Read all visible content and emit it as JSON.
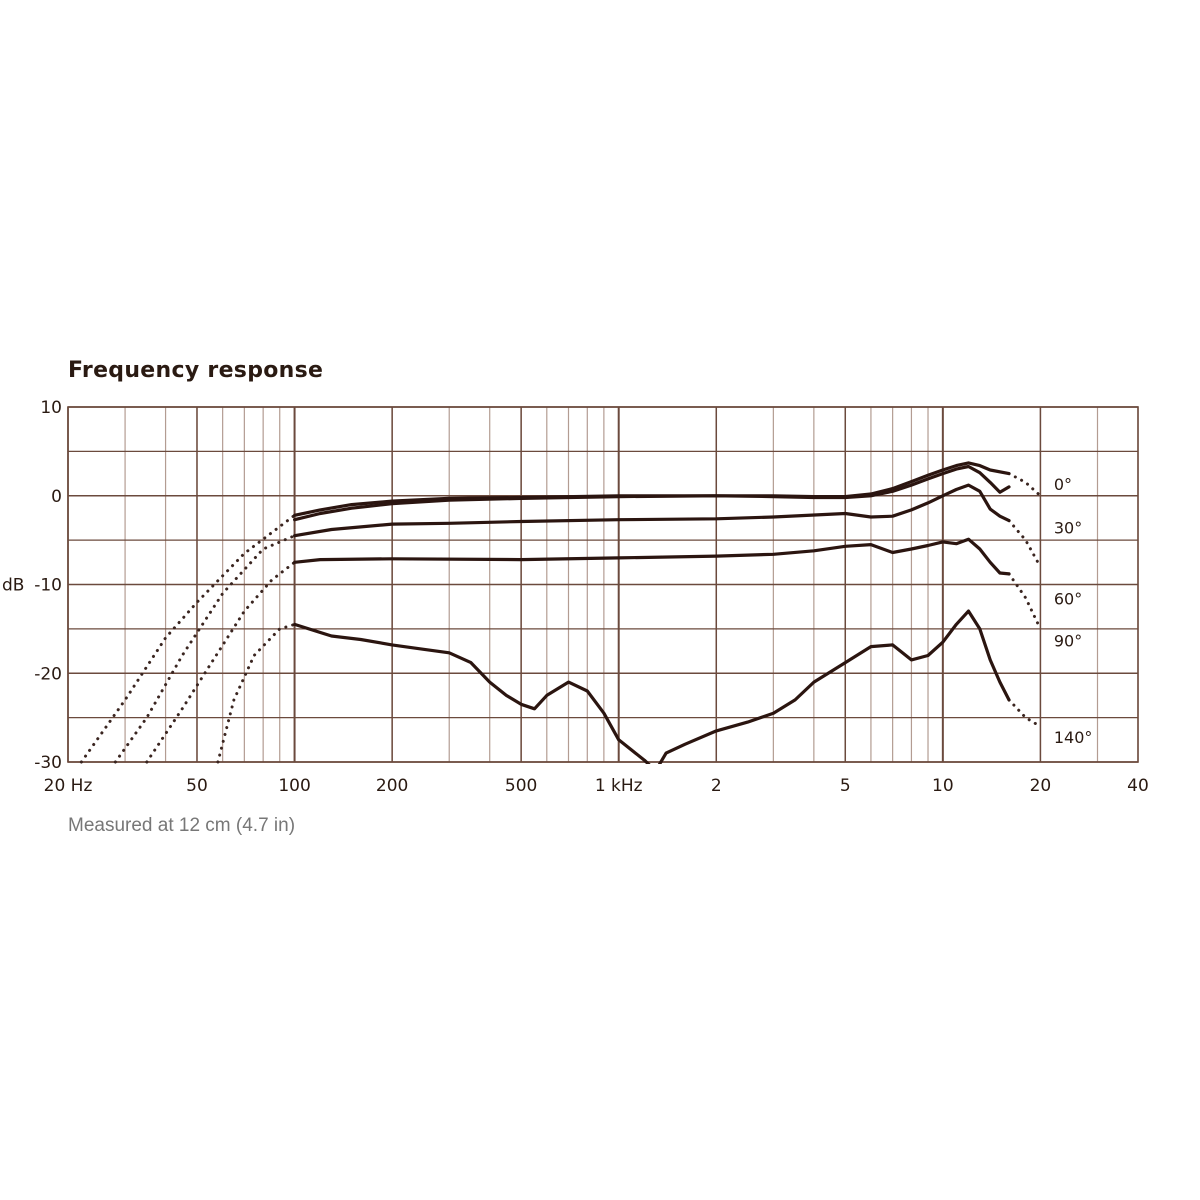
{
  "title": "Frequency response",
  "note": "Measured at 12 cm (4.7 in)",
  "chart_data": {
    "type": "line",
    "title": "Frequency response",
    "ylabel": "dB",
    "xscale": "log",
    "xlim": [
      20,
      40000
    ],
    "ylim": [
      -30,
      10
    ],
    "grid": true,
    "x_ticks": [
      {
        "v": 20,
        "label": "20 Hz"
      },
      {
        "v": 50,
        "label": "50"
      },
      {
        "v": 100,
        "label": "100"
      },
      {
        "v": 200,
        "label": "200"
      },
      {
        "v": 500,
        "label": "500"
      },
      {
        "v": 1000,
        "label": "1 kHz"
      },
      {
        "v": 2000,
        "label": "2"
      },
      {
        "v": 5000,
        "label": "5"
      },
      {
        "v": 10000,
        "label": "10"
      },
      {
        "v": 20000,
        "label": "20"
      },
      {
        "v": 40000,
        "label": "40"
      }
    ],
    "y_ticks": [
      {
        "v": 10,
        "label": "10"
      },
      {
        "v": 0,
        "label": "0"
      },
      {
        "v": -10,
        "label": "-10"
      },
      {
        "v": -20,
        "label": "-20"
      },
      {
        "v": -30,
        "label": "-30"
      }
    ],
    "series": [
      {
        "name": "0°",
        "rolloff_low": [
          [
            22,
            -30
          ],
          [
            30,
            -23
          ],
          [
            40,
            -16
          ],
          [
            50,
            -12
          ],
          [
            70,
            -6.5
          ],
          [
            100,
            -2.2
          ]
        ],
        "rolloff_high": [
          [
            16000,
            2.5
          ],
          [
            18000,
            1.5
          ],
          [
            20000,
            0
          ]
        ],
        "values": [
          [
            100,
            -2.2
          ],
          [
            120,
            -1.6
          ],
          [
            150,
            -1
          ],
          [
            200,
            -0.6
          ],
          [
            300,
            -0.3
          ],
          [
            500,
            -0.2
          ],
          [
            1000,
            0
          ],
          [
            2000,
            0
          ],
          [
            3000,
            0
          ],
          [
            4000,
            -0.1
          ],
          [
            5000,
            -0.1
          ],
          [
            6000,
            0.2
          ],
          [
            7000,
            0.8
          ],
          [
            8000,
            1.6
          ],
          [
            9000,
            2.3
          ],
          [
            10000,
            2.9
          ],
          [
            11000,
            3.4
          ],
          [
            12000,
            3.7
          ],
          [
            13000,
            3.4
          ],
          [
            14000,
            2.9
          ],
          [
            16000,
            2.5
          ]
        ]
      },
      {
        "name": "0°",
        "values": [
          [
            100,
            -2.7
          ],
          [
            120,
            -2
          ],
          [
            150,
            -1.4
          ],
          [
            200,
            -0.9
          ],
          [
            300,
            -0.5
          ],
          [
            500,
            -0.3
          ],
          [
            1000,
            -0.1
          ],
          [
            2000,
            0
          ],
          [
            3000,
            -0.1
          ],
          [
            4000,
            -0.2
          ],
          [
            5000,
            -0.2
          ],
          [
            6000,
            0
          ],
          [
            7000,
            0.5
          ],
          [
            8000,
            1.2
          ],
          [
            9000,
            1.9
          ],
          [
            10000,
            2.5
          ],
          [
            11000,
            3
          ],
          [
            12000,
            3.3
          ],
          [
            13000,
            2.6
          ],
          [
            14000,
            1.5
          ],
          [
            15000,
            0.4
          ],
          [
            16000,
            1
          ]
        ]
      },
      {
        "name": "30°",
        "rolloff_low": [
          [
            28,
            -30
          ],
          [
            35,
            -25
          ],
          [
            45,
            -18
          ],
          [
            60,
            -11
          ],
          [
            80,
            -6
          ],
          [
            100,
            -4.5
          ]
        ],
        "rolloff_high": [
          [
            16000,
            -2.8
          ],
          [
            18000,
            -5
          ],
          [
            20000,
            -8
          ]
        ],
        "values": [
          [
            100,
            -4.5
          ],
          [
            130,
            -3.8
          ],
          [
            200,
            -3.2
          ],
          [
            300,
            -3.1
          ],
          [
            500,
            -2.9
          ],
          [
            1000,
            -2.7
          ],
          [
            2000,
            -2.6
          ],
          [
            3000,
            -2.4
          ],
          [
            5000,
            -2
          ],
          [
            6000,
            -2.4
          ],
          [
            7000,
            -2.3
          ],
          [
            8000,
            -1.6
          ],
          [
            9000,
            -0.8
          ],
          [
            10000,
            0
          ],
          [
            11000,
            0.7
          ],
          [
            12000,
            1.2
          ],
          [
            13000,
            0.5
          ],
          [
            14000,
            -1.5
          ],
          [
            15000,
            -2.3
          ],
          [
            16000,
            -2.8
          ]
        ]
      },
      {
        "name": "60°",
        "rolloff_low": [
          [
            35,
            -30
          ],
          [
            45,
            -24
          ],
          [
            55,
            -19
          ],
          [
            70,
            -13
          ],
          [
            85,
            -9.5
          ],
          [
            100,
            -7.5
          ]
        ],
        "rolloff_high": [
          [
            16000,
            -8.8
          ],
          [
            18000,
            -11.5
          ],
          [
            20000,
            -15
          ]
        ],
        "values": [
          [
            100,
            -7.5
          ],
          [
            120,
            -7.2
          ],
          [
            200,
            -7.1
          ],
          [
            500,
            -7.2
          ],
          [
            1000,
            -7
          ],
          [
            2000,
            -6.8
          ],
          [
            3000,
            -6.6
          ],
          [
            4000,
            -6.2
          ],
          [
            5000,
            -5.7
          ],
          [
            6000,
            -5.5
          ],
          [
            7000,
            -6.4
          ],
          [
            8000,
            -6
          ],
          [
            9000,
            -5.6
          ],
          [
            10000,
            -5.2
          ],
          [
            11000,
            -5.4
          ],
          [
            12000,
            -4.9
          ],
          [
            13000,
            -6
          ],
          [
            14000,
            -7.5
          ],
          [
            15000,
            -8.7
          ],
          [
            16000,
            -8.8
          ]
        ]
      },
      {
        "name": "90°",
        "rolloff_low": [
          [
            58,
            -30
          ],
          [
            65,
            -23
          ],
          [
            75,
            -18
          ],
          [
            90,
            -15
          ],
          [
            100,
            -14.5
          ]
        ],
        "rolloff_high": [
          [
            16000,
            -23
          ],
          [
            18000,
            -25
          ],
          [
            20000,
            -26
          ]
        ],
        "values": [
          [
            100,
            -14.5
          ],
          [
            130,
            -15.8
          ],
          [
            160,
            -16.2
          ],
          [
            200,
            -16.8
          ],
          [
            250,
            -17.3
          ],
          [
            300,
            -17.7
          ],
          [
            350,
            -18.8
          ],
          [
            400,
            -21
          ],
          [
            450,
            -22.5
          ],
          [
            500,
            -23.5
          ],
          [
            550,
            -24
          ],
          [
            600,
            -22.5
          ],
          [
            700,
            -21
          ],
          [
            800,
            -22
          ],
          [
            900,
            -24.5
          ],
          [
            1000,
            -27.5
          ],
          [
            1200,
            -29.8
          ],
          [
            1300,
            -31
          ],
          [
            1400,
            -29
          ],
          [
            1600,
            -28
          ],
          [
            2000,
            -26.5
          ],
          [
            2500,
            -25.5
          ],
          [
            3000,
            -24.5
          ],
          [
            3500,
            -23
          ],
          [
            4000,
            -21
          ],
          [
            5000,
            -18.8
          ],
          [
            6000,
            -17
          ],
          [
            7000,
            -16.8
          ],
          [
            8000,
            -18.5
          ],
          [
            9000,
            -18
          ],
          [
            10000,
            -16.5
          ],
          [
            11000,
            -14.5
          ],
          [
            12000,
            -13
          ],
          [
            13000,
            -15
          ],
          [
            14000,
            -18.5
          ],
          [
            15000,
            -21
          ],
          [
            16000,
            -23
          ]
        ]
      },
      {
        "name": "140°",
        "values": []
      }
    ],
    "angle_labels": [
      {
        "label": "0°",
        "x": 22000,
        "y": 1.3
      },
      {
        "label": "30°",
        "x": 22000,
        "y": -3.6
      },
      {
        "label": "60°",
        "x": 22000,
        "y": -11.6
      },
      {
        "label": "90°",
        "x": 22000,
        "y": -16.3
      },
      {
        "label": "140°",
        "x": 22000,
        "y": -27.2
      }
    ],
    "colors": {
      "curve": "#2b1510",
      "grid": "#6b4a3d",
      "grid_minor": "#b39c92",
      "dotted": "#3a2520"
    }
  }
}
